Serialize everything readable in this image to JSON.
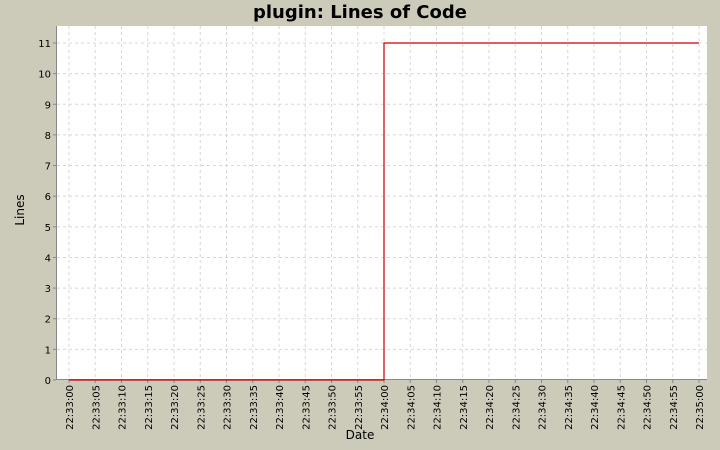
{
  "chart_data": {
    "type": "line",
    "title": "plugin: Lines of Code",
    "xlabel": "Date",
    "ylabel": "Lines",
    "ylim": [
      0,
      11
    ],
    "yticks": [
      0,
      1,
      2,
      3,
      4,
      5,
      6,
      7,
      8,
      9,
      10,
      11
    ],
    "x_ticks": [
      "22:33:00",
      "22:33:05",
      "22:33:10",
      "22:33:15",
      "22:33:20",
      "22:33:25",
      "22:33:30",
      "22:33:35",
      "22:33:40",
      "22:33:45",
      "22:33:50",
      "22:33:55",
      "22:34:00",
      "22:34:05",
      "22:34:10",
      "22:34:15",
      "22:34:20",
      "22:34:25",
      "22:34:30",
      "22:34:35",
      "22:34:40",
      "22:34:45",
      "22:34:50",
      "22:34:55",
      "22:35:00"
    ],
    "grid": true,
    "series": [
      {
        "name": "Lines of Code",
        "color": "#cc0000",
        "step": true,
        "points": [
          {
            "x": "22:33:00",
            "y": 0
          },
          {
            "x": "22:34:00",
            "y": 0
          },
          {
            "x": "22:34:00",
            "y": 11
          },
          {
            "x": "22:35:00",
            "y": 11
          }
        ]
      }
    ]
  }
}
